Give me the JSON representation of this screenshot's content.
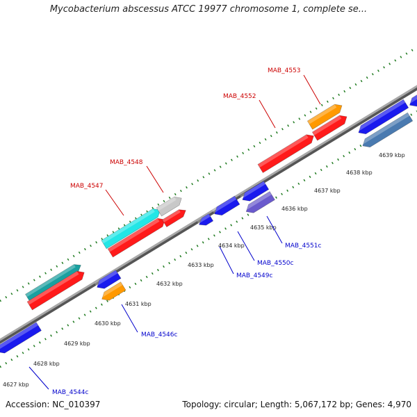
{
  "title": "Mycobacterium abscessus ATCC 19977 chromosome 1, complete se...",
  "accession": "Accession: NC_010397",
  "summary": "Topology: circular; Length: 5,067,172 bp; Genes: 4,970",
  "colors": {
    "backbone": "#8c8c8c",
    "tick_dots": "#1f7a1f",
    "forward_label": "#cc0000",
    "reverse_label": "#0000cc",
    "red": "#ff1a1a",
    "blue": "#1a1aee",
    "cyan": "#22e6e6",
    "orange": "#ff9900",
    "steel": "#4a7ab0",
    "gray": "#c8c8c8",
    "slate": "#6a5acd",
    "teal": "#1aa0a0"
  },
  "ticks": [
    "4627 kbp",
    "4628 kbp",
    "4629 kbp",
    "4630 kbp",
    "4631 kbp",
    "4632 kbp",
    "4633 kbp",
    "4634 kbp",
    "4635 kbp",
    "4636 kbp",
    "4637 kbp",
    "4638 kbp",
    "4639 kbp"
  ],
  "forward_genes": [
    {
      "name": "MAB_4547",
      "color": "red"
    },
    {
      "name": "MAB_4548",
      "color": "gray"
    },
    {
      "name": "MAB_4552",
      "color": "red"
    },
    {
      "name": "MAB_4553",
      "color": "orange"
    }
  ],
  "reverse_genes": [
    {
      "name": "MAB_4544c",
      "color": "blue"
    },
    {
      "name": "MAB_4546c",
      "color": "orange"
    },
    {
      "name": "MAB_4549c",
      "color": "blue"
    },
    {
      "name": "MAB_4550c",
      "color": "blue"
    },
    {
      "name": "MAB_4551c",
      "color": "slate"
    }
  ]
}
